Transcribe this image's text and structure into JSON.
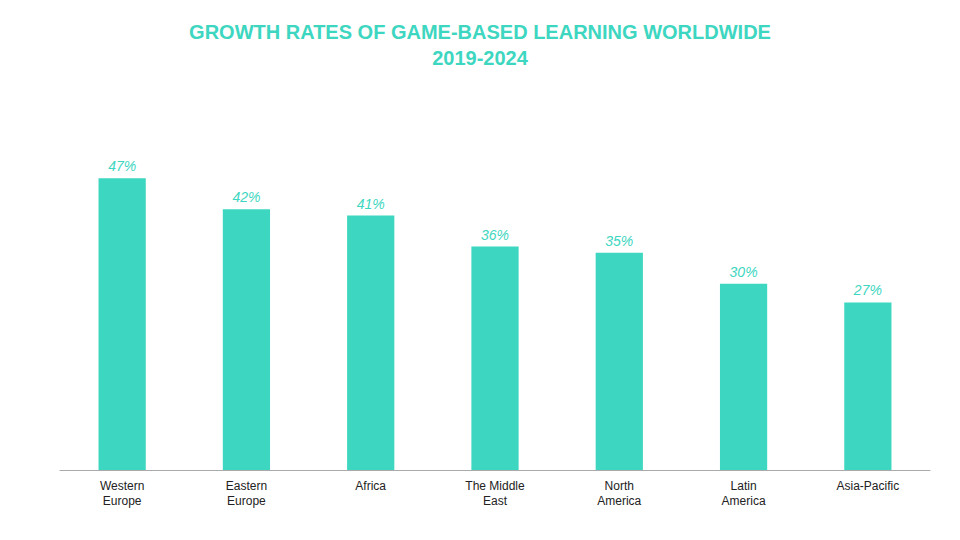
{
  "chart_data": {
    "type": "bar",
    "title": "GROWTH RATES OF GAME-BASED LEARNING WORLDWIDE\n2019-2024",
    "categories": [
      "Western\nEurope",
      "Eastern\nEurope",
      "Africa",
      "The Middle\nEast",
      "North\nAmerica",
      "Latin\nAmerica",
      "Asia-Pacific"
    ],
    "values": [
      47,
      42,
      41,
      36,
      35,
      30,
      27
    ],
    "value_labels": [
      "47%",
      "42%",
      "41%",
      "36%",
      "35%",
      "30%",
      "27%"
    ],
    "data_labels": true,
    "color": "#3DD6C0",
    "ylim": [
      0,
      58
    ],
    "grid": false,
    "tick_labels": "x"
  }
}
